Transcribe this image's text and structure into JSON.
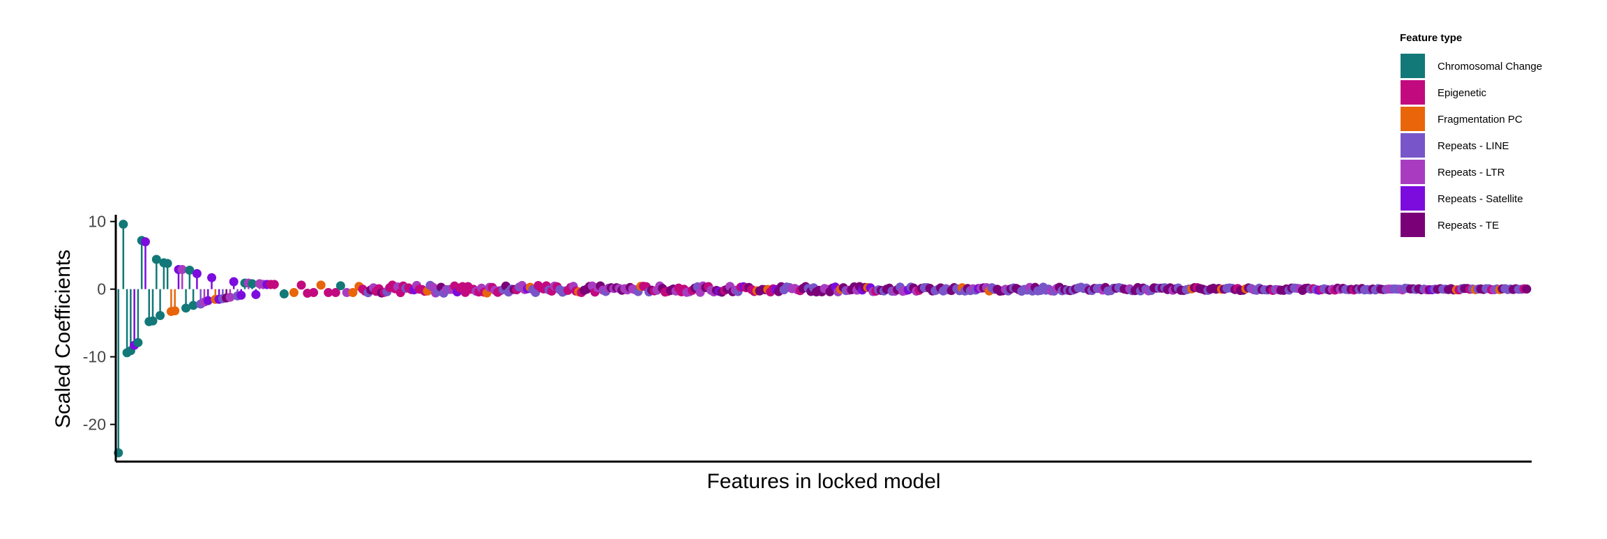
{
  "chart_data": {
    "type": "scatter",
    "subtype": "lollipop",
    "title": "",
    "xlabel": "Features in locked model",
    "ylabel": "Scaled Coefficients",
    "ylim": [
      -25.5,
      11
    ],
    "xlim": [
      0,
      1150
    ],
    "yticks": [
      10,
      0,
      -10,
      -20
    ],
    "ytick_labels": [
      "10",
      "0",
      "-10",
      "-20"
    ],
    "grid": false,
    "legend": {
      "title": "Feature type",
      "placement": "top-right",
      "entries": [
        {
          "label": "Chromosomal Change",
          "color": "#127878"
        },
        {
          "label": "Epigenetic",
          "color": "#C20A7E"
        },
        {
          "label": "Fragmentation PC",
          "color": "#E8650A"
        },
        {
          "label": "Repeats - LINE",
          "color": "#7855C8"
        },
        {
          "label": "Repeats - LTR",
          "color": "#A83CC0"
        },
        {
          "label": "Repeats - Satellite",
          "color": "#7C0CDE"
        },
        {
          "label": "Repeats - TE",
          "color": "#7A0078"
        }
      ]
    },
    "points": [
      {
        "x": 1,
        "y": -24.2,
        "type": "Chromosomal Change"
      },
      {
        "x": 5,
        "y": 9.6,
        "type": "Chromosomal Change"
      },
      {
        "x": 8,
        "y": -9.4,
        "type": "Chromosomal Change"
      },
      {
        "x": 11,
        "y": -9.1,
        "type": "Chromosomal Change"
      },
      {
        "x": 14,
        "y": -8.3,
        "type": "Repeats - Satellite"
      },
      {
        "x": 17,
        "y": -7.9,
        "type": "Chromosomal Change"
      },
      {
        "x": 20,
        "y": 7.2,
        "type": "Chromosomal Change"
      },
      {
        "x": 23,
        "y": 7.0,
        "type": "Repeats - Satellite"
      },
      {
        "x": 26,
        "y": -4.8,
        "type": "Chromosomal Change"
      },
      {
        "x": 29,
        "y": -4.7,
        "type": "Chromosomal Change"
      },
      {
        "x": 32,
        "y": 4.4,
        "type": "Chromosomal Change"
      },
      {
        "x": 35,
        "y": -3.9,
        "type": "Chromosomal Change"
      },
      {
        "x": 38,
        "y": 3.9,
        "type": "Chromosomal Change"
      },
      {
        "x": 41,
        "y": 3.8,
        "type": "Chromosomal Change"
      },
      {
        "x": 44,
        "y": -3.3,
        "type": "Fragmentation PC"
      },
      {
        "x": 47,
        "y": -3.2,
        "type": "Fragmentation PC"
      },
      {
        "x": 50,
        "y": 2.9,
        "type": "Repeats - Satellite"
      },
      {
        "x": 53,
        "y": 2.9,
        "type": "Repeats - LTR"
      },
      {
        "x": 56,
        "y": -2.8,
        "type": "Chromosomal Change"
      },
      {
        "x": 59,
        "y": 2.8,
        "type": "Chromosomal Change"
      },
      {
        "x": 62,
        "y": -2.4,
        "type": "Chromosomal Change"
      },
      {
        "x": 65,
        "y": 2.3,
        "type": "Repeats - Satellite"
      },
      {
        "x": 68,
        "y": -2.2,
        "type": "Repeats - LINE"
      },
      {
        "x": 71,
        "y": -1.9,
        "type": "Repeats - LTR"
      },
      {
        "x": 74,
        "y": -1.7,
        "type": "Repeats - Satellite"
      },
      {
        "x": 77,
        "y": 1.7,
        "type": "Repeats - Satellite"
      },
      {
        "x": 80,
        "y": -1.5,
        "type": "Fragmentation PC"
      },
      {
        "x": 83,
        "y": -1.5,
        "type": "Repeats - Satellite"
      },
      {
        "x": 86,
        "y": -1.4,
        "type": "Repeats - LINE"
      },
      {
        "x": 89,
        "y": -1.3,
        "type": "Repeats - TE"
      },
      {
        "x": 92,
        "y": -1.2,
        "type": "Repeats - LTR"
      },
      {
        "x": 95,
        "y": 1.1,
        "type": "Repeats - Satellite"
      },
      {
        "x": 98,
        "y": -1.0,
        "type": "Repeats - LINE"
      },
      {
        "x": 101,
        "y": -0.9,
        "type": "Repeats - Satellite"
      },
      {
        "x": 104,
        "y": 0.9,
        "type": "Chromosomal Change"
      },
      {
        "x": 107,
        "y": 0.9,
        "type": "Repeats - LTR"
      },
      {
        "x": 110,
        "y": 0.8,
        "type": "Chromosomal Change"
      },
      {
        "x": 113,
        "y": -0.8,
        "type": "Repeats - Satellite"
      },
      {
        "x": 116,
        "y": 0.8,
        "type": "Repeats - LTR"
      },
      {
        "x": 119,
        "y": 0.7,
        "type": "Repeats - LTR"
      },
      {
        "x": 122,
        "y": 0.7,
        "type": "Repeats - Satellite"
      },
      {
        "x": 125,
        "y": 0.7,
        "type": "Epigenetic"
      },
      {
        "x": 128,
        "y": 0.7,
        "type": "Epigenetic"
      },
      {
        "x": 136,
        "y": -0.7,
        "type": "Chromosomal Change"
      },
      {
        "x": 144,
        "y": -0.5,
        "type": "Fragmentation PC"
      },
      {
        "x": 150,
        "y": 0.6,
        "type": "Epigenetic"
      },
      {
        "x": 155,
        "y": -0.6,
        "type": "Epigenetic"
      },
      {
        "x": 160,
        "y": -0.5,
        "type": "Epigenetic"
      },
      {
        "x": 166,
        "y": 0.6,
        "type": "Fragmentation PC"
      },
      {
        "x": 172,
        "y": -0.5,
        "type": "Epigenetic"
      },
      {
        "x": 178,
        "y": -0.5,
        "type": "Epigenetic"
      },
      {
        "x": 182,
        "y": 0.5,
        "type": "Chromosomal Change"
      },
      {
        "x": 187,
        "y": -0.5,
        "type": "Repeats - LTR"
      },
      {
        "x": 192,
        "y": -0.5,
        "type": "Fragmentation PC"
      },
      {
        "x": 197,
        "y": 0.4,
        "type": "Fragmentation PC"
      }
    ]
  }
}
